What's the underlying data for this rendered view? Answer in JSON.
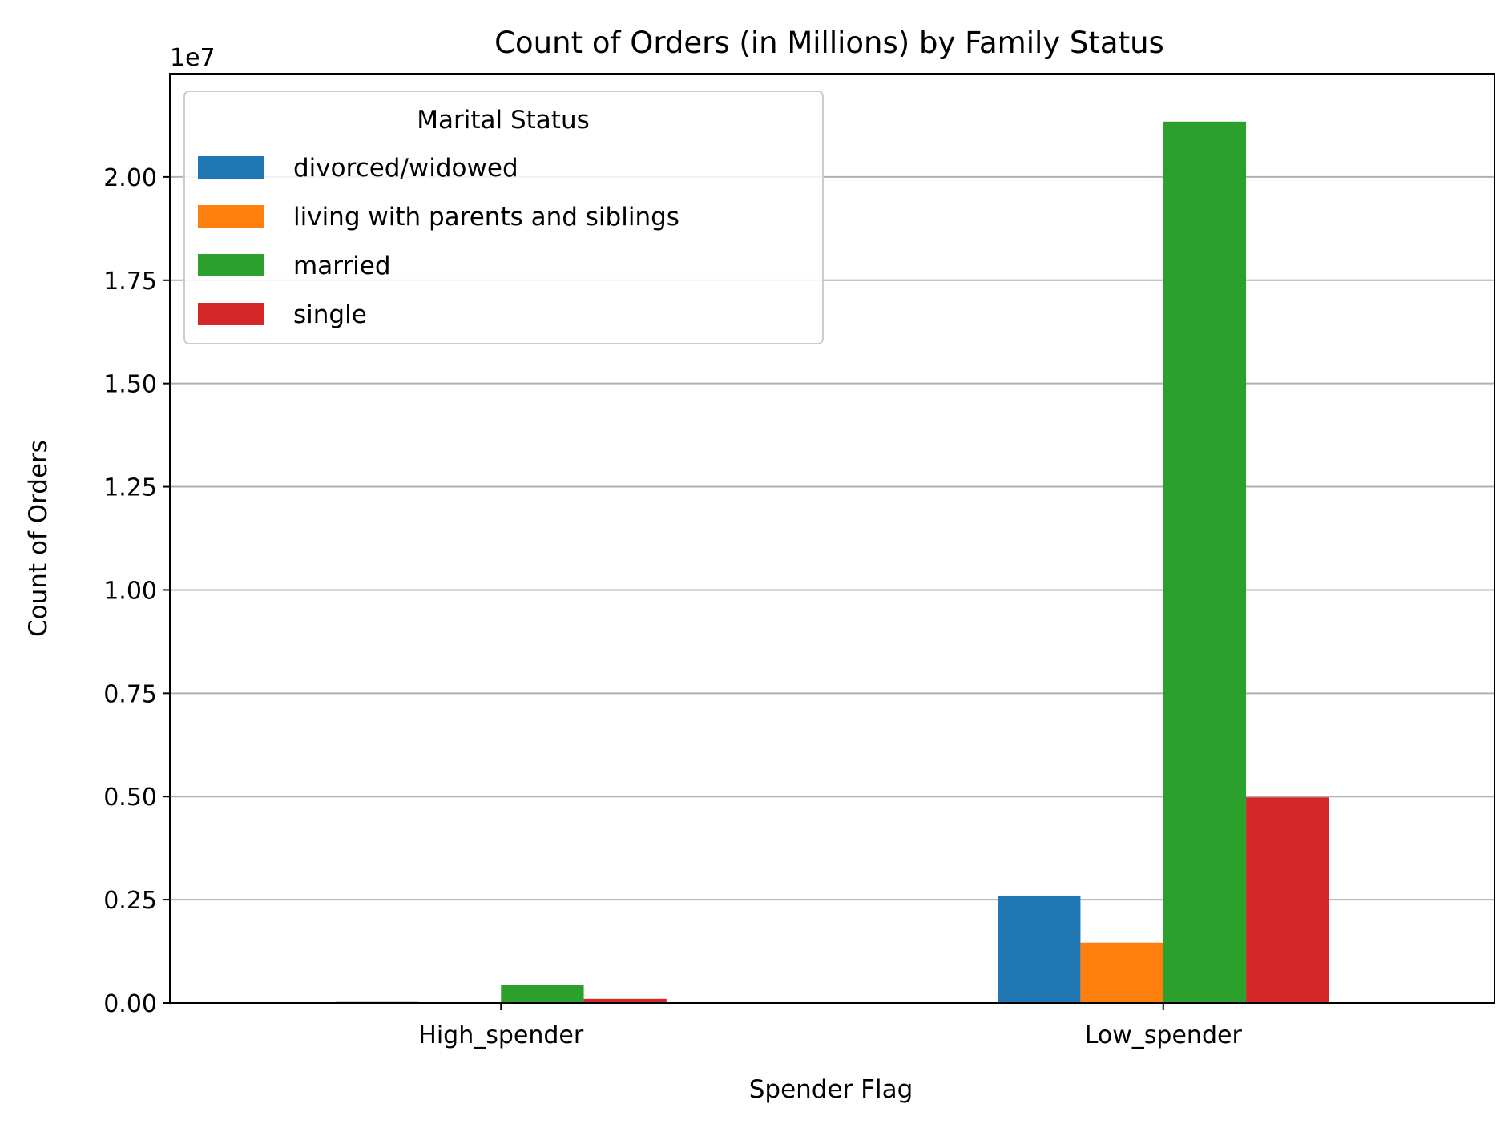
{
  "chart_data": {
    "type": "bar",
    "title": "Count of Orders (in Millions) by Family Status",
    "xlabel": "Spender Flag",
    "ylabel": "Count of Orders",
    "y_offset_label": "1e7",
    "categories": [
      "High_spender",
      "Low_spender"
    ],
    "series": [
      {
        "name": "divorced/widowed",
        "color": "#1f77b4",
        "values": [
          25000,
          2600000
        ]
      },
      {
        "name": "living with parents and siblings",
        "color": "#ff7f0e",
        "values": [
          8000,
          1460000
        ]
      },
      {
        "name": "married",
        "color": "#2ca02c",
        "values": [
          440000,
          21340000
        ]
      },
      {
        "name": "single",
        "color": "#d62728",
        "values": [
          100000,
          4980000
        ]
      }
    ],
    "ylim": [
      0,
      22500000
    ],
    "yticks": [
      0,
      2500000,
      5000000,
      7500000,
      10000000,
      12500000,
      15000000,
      17500000,
      20000000
    ],
    "ytick_labels": [
      "0.00",
      "0.25",
      "0.50",
      "0.75",
      "1.00",
      "1.25",
      "1.50",
      "1.75",
      "2.00"
    ],
    "grid": "y",
    "legend": {
      "title": "Marital Status",
      "placement": "upper-left"
    }
  }
}
